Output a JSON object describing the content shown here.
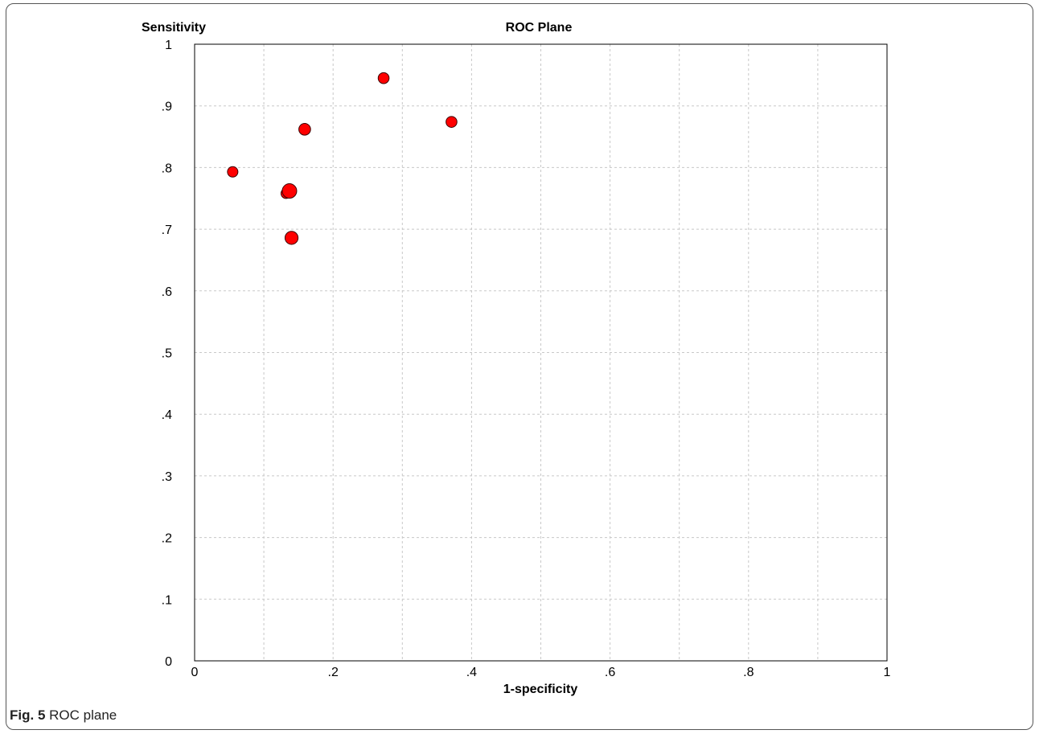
{
  "chart_data": {
    "type": "scatter",
    "title": "ROC Plane",
    "xlabel": "1-specificity",
    "ylabel": "Sensitivity",
    "xlim": [
      0,
      1
    ],
    "ylim": [
      0,
      1
    ],
    "grid": true,
    "x_ticks": [
      0,
      0.1,
      0.2,
      0.3,
      0.4,
      0.5,
      0.6,
      0.7,
      0.8,
      0.9,
      1
    ],
    "y_ticks": [
      0,
      0.1,
      0.2,
      0.3,
      0.4,
      0.5,
      0.6,
      0.7,
      0.8,
      0.9,
      1
    ],
    "x_tick_labels": [
      "0",
      "",
      ".2",
      "",
      ".4",
      "",
      ".6",
      "",
      ".8",
      "",
      "1"
    ],
    "y_tick_labels": [
      "0",
      ".1",
      ".2",
      ".3",
      ".4",
      ".5",
      ".6",
      ".7",
      ".8",
      ".9",
      "1"
    ],
    "marker_color": "#ff0000",
    "marker_edge": "#3a0000",
    "points": [
      {
        "x": 0.055,
        "y": 0.793,
        "weight": 1.0
      },
      {
        "x": 0.132,
        "y": 0.758,
        "weight": 0.9
      },
      {
        "x": 0.137,
        "y": 0.762,
        "weight": 2.0
      },
      {
        "x": 0.14,
        "y": 0.686,
        "weight": 1.6
      },
      {
        "x": 0.159,
        "y": 0.862,
        "weight": 1.3
      },
      {
        "x": 0.273,
        "y": 0.945,
        "weight": 1.1
      },
      {
        "x": 0.371,
        "y": 0.874,
        "weight": 1.1
      }
    ]
  },
  "caption": {
    "fig_label": "Fig. 5",
    "text": " ROC plane"
  }
}
